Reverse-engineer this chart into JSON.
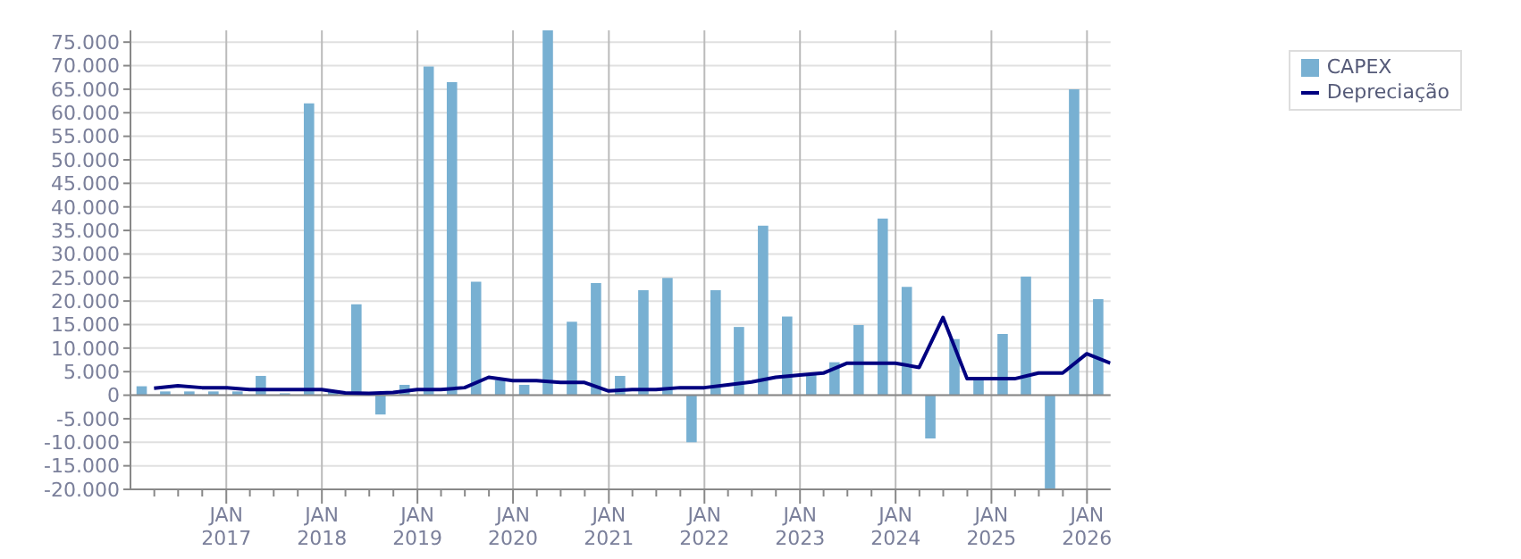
{
  "chart_data": {
    "type": "bar",
    "legend": "top right",
    "grid": true,
    "xlim": [
      "2016-01-01",
      "2026-04-01"
    ],
    "xticks": [
      {
        "value": "2016-04",
        "label": null
      },
      {
        "value": "2016-07",
        "label": null
      },
      {
        "value": "2016-10",
        "label": null
      },
      {
        "value": "2017-01",
        "label": "JAN 2017"
      },
      {
        "value": "2017-04",
        "label": null
      },
      {
        "value": "2017-07",
        "label": null
      },
      {
        "value": "2017-10",
        "label": null
      },
      {
        "value": "2018-01",
        "label": "JAN 2018"
      },
      {
        "value": "2018-04",
        "label": null
      },
      {
        "value": "2018-07",
        "label": null
      },
      {
        "value": "2018-10",
        "label": null
      },
      {
        "value": "2019-01",
        "label": "JAN 2019"
      },
      {
        "value": "2019-04",
        "label": null
      },
      {
        "value": "2019-07",
        "label": null
      },
      {
        "value": "2019-10",
        "label": null
      },
      {
        "value": "2020-01",
        "label": "JAN 2020"
      },
      {
        "value": "2020-04",
        "label": null
      },
      {
        "value": "2020-07",
        "label": null
      },
      {
        "value": "2020-10",
        "label": null
      },
      {
        "value": "2021-01",
        "label": "JAN 2021"
      },
      {
        "value": "2021-04",
        "label": null
      },
      {
        "value": "2021-07",
        "label": null
      },
      {
        "value": "2021-10",
        "label": null
      },
      {
        "value": "2022-01",
        "label": "JAN 2022"
      },
      {
        "value": "2022-04",
        "label": null
      },
      {
        "value": "2022-07",
        "label": null
      },
      {
        "value": "2022-10",
        "label": null
      },
      {
        "value": "2023-01",
        "label": "JAN 2023"
      },
      {
        "value": "2023-04",
        "label": null
      },
      {
        "value": "2023-07",
        "label": null
      },
      {
        "value": "2023-10",
        "label": null
      },
      {
        "value": "2024-01",
        "label": "JAN 2024"
      },
      {
        "value": "2024-04",
        "label": null
      },
      {
        "value": "2024-07",
        "label": null
      },
      {
        "value": "2024-10",
        "label": null
      },
      {
        "value": "2025-01",
        "label": "JAN 2025"
      },
      {
        "value": "2025-04",
        "label": null
      },
      {
        "value": "2025-07",
        "label": null
      },
      {
        "value": "2025-10",
        "label": null
      },
      {
        "value": "2026-01",
        "label": "JAN 2026"
      }
    ],
    "ylim": [
      -20000,
      77500
    ],
    "yticks": [
      {
        "value": -20000,
        "label": "-20.000"
      },
      {
        "value": -15000,
        "label": "-15.000"
      },
      {
        "value": -10000,
        "label": "-10.000"
      },
      {
        "value": -5000,
        "label": "-5.000"
      },
      {
        "value": 0,
        "label": "0"
      },
      {
        "value": 5000,
        "label": "5.000"
      },
      {
        "value": 10000,
        "label": "10.000"
      },
      {
        "value": 15000,
        "label": "15.000"
      },
      {
        "value": 20000,
        "label": "20.000"
      },
      {
        "value": 25000,
        "label": "25.000"
      },
      {
        "value": 30000,
        "label": "30.000"
      },
      {
        "value": 35000,
        "label": "35.000"
      },
      {
        "value": 40000,
        "label": "40.000"
      },
      {
        "value": 45000,
        "label": "45.000"
      },
      {
        "value": 50000,
        "label": "50.000"
      },
      {
        "value": 55000,
        "label": "55.000"
      },
      {
        "value": 60000,
        "label": "60.000"
      },
      {
        "value": 65000,
        "label": "65.000"
      },
      {
        "value": 70000,
        "label": "70.000"
      },
      {
        "value": 75000,
        "label": "75.000"
      }
    ],
    "series": [
      {
        "name": "CAPEX",
        "color": "#78b0d2",
        "x": [
          "2016-02-15",
          "2016-05-15",
          "2016-08-15",
          "2016-11-15",
          "2017-02-15",
          "2017-05-15",
          "2017-08-15",
          "2017-11-15",
          "2018-02-15",
          "2018-05-15",
          "2018-08-15",
          "2018-11-15",
          "2019-02-15",
          "2019-05-15",
          "2019-08-15",
          "2019-11-15",
          "2020-02-15",
          "2020-05-15",
          "2020-08-15",
          "2020-11-15",
          "2021-02-15",
          "2021-05-15",
          "2021-08-15",
          "2021-11-15",
          "2022-02-15",
          "2022-05-15",
          "2022-08-15",
          "2022-11-15",
          "2023-02-15",
          "2023-05-15",
          "2023-08-15",
          "2023-11-15",
          "2024-02-15",
          "2024-05-15",
          "2024-08-15",
          "2024-11-15",
          "2025-02-15",
          "2025-05-15",
          "2025-08-15",
          "2025-11-15",
          "2026-02-15"
        ],
        "values": [
          1900,
          800,
          800,
          800,
          800,
          4100,
          400,
          62000,
          900,
          19300,
          -4100,
          2200,
          69800,
          66500,
          24100,
          3200,
          2200,
          77500,
          15600,
          23800,
          4100,
          22300,
          24900,
          -10000,
          22300,
          14500,
          36000,
          16700,
          4500,
          7000,
          14900,
          37500,
          23000,
          -9200,
          11900,
          3300,
          13000,
          25200,
          -20000,
          65000,
          20400
        ]
      },
      {
        "name": "Depreciação",
        "type": "line",
        "color": "#000080",
        "x": [
          "2016-03-31",
          "2016-06-30",
          "2016-09-30",
          "2016-12-31",
          "2017-03-31",
          "2017-06-30",
          "2017-09-30",
          "2017-12-31",
          "2018-03-31",
          "2018-06-30",
          "2018-09-30",
          "2018-12-31",
          "2019-03-31",
          "2019-06-30",
          "2019-09-30",
          "2019-12-31",
          "2020-03-31",
          "2020-06-30",
          "2020-09-30",
          "2020-12-31",
          "2021-03-31",
          "2021-06-30",
          "2021-09-30",
          "2021-12-31",
          "2022-03-31",
          "2022-06-30",
          "2022-09-30",
          "2022-12-31",
          "2023-03-31",
          "2023-06-30",
          "2023-09-30",
          "2023-12-31",
          "2024-03-31",
          "2024-06-30",
          "2024-09-30",
          "2024-12-31",
          "2025-03-31",
          "2025-06-30",
          "2025-09-30",
          "2025-12-31",
          "2026-03-31"
        ],
        "values": [
          1500,
          2000,
          1600,
          1600,
          1200,
          1200,
          1200,
          1200,
          500,
          400,
          600,
          1200,
          1200,
          1600,
          3800,
          3100,
          3100,
          2700,
          2700,
          900,
          1200,
          1200,
          1600,
          1600,
          2200,
          2800,
          3800,
          4300,
          4700,
          6800,
          6800,
          6800,
          5900,
          16500,
          3500,
          3500,
          3500,
          4700,
          4700,
          8800,
          6800
        ]
      }
    ]
  }
}
